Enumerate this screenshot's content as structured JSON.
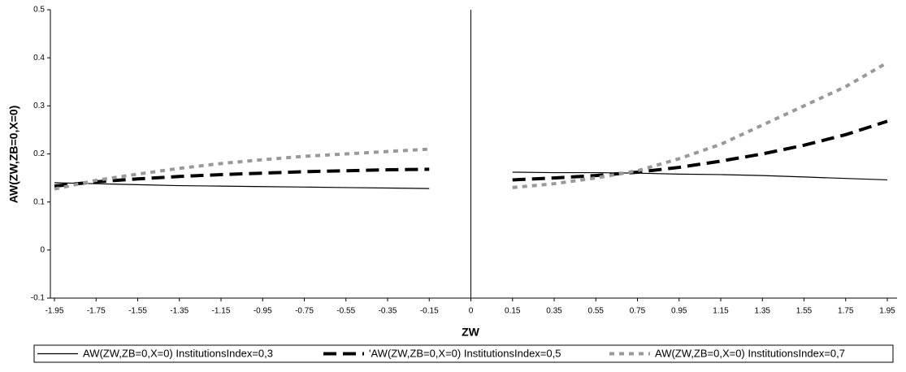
{
  "chart_data": {
    "type": "line",
    "x_label": "ZW",
    "y_label": "AW(ZW,ZB=0,X=0)",
    "categories": [
      "-1.95",
      "-1.75",
      "-1.55",
      "-1.35",
      "-1.15",
      "-0.95",
      "-0.75",
      "-0.55",
      "-0.35",
      "-0.15",
      "0",
      "0.15",
      "0.35",
      "0.55",
      "0.75",
      "0.95",
      "1.15",
      "1.35",
      "1.55",
      "1.75",
      "1.95"
    ],
    "series": [
      {
        "name": "AW(ZW,ZB=0,X=0) InstitutionsIndex=0,3",
        "color": "#000000",
        "width": 1.2,
        "dash": "none",
        "values": [
          0.14,
          0.138,
          0.136,
          0.134,
          0.133,
          0.132,
          0.131,
          0.13,
          0.129,
          0.128,
          null,
          0.162,
          0.161,
          0.161,
          0.16,
          0.158,
          0.157,
          0.155,
          0.152,
          0.149,
          0.146
        ]
      },
      {
        "name": "'AW(ZW,ZB=0,X=0) InstitutionsIndex=0,5",
        "color": "#000000",
        "width": 4,
        "dash": "16 8",
        "values": [
          0.133,
          0.142,
          0.148,
          0.153,
          0.157,
          0.16,
          0.163,
          0.165,
          0.167,
          0.168,
          null,
          0.146,
          0.15,
          0.155,
          0.162,
          0.172,
          0.185,
          0.2,
          0.218,
          0.24,
          0.268
        ]
      },
      {
        "name": "AW(ZW,ZB=0,X=0) InstitutionsIndex=0,7",
        "color": "#999999",
        "width": 4,
        "dash": "6 6",
        "values": [
          0.127,
          0.145,
          0.158,
          0.17,
          0.18,
          0.188,
          0.195,
          0.2,
          0.205,
          0.21,
          null,
          0.13,
          0.138,
          0.15,
          0.165,
          0.19,
          0.22,
          0.26,
          0.3,
          0.34,
          0.39
        ]
      }
    ],
    "ylim": [
      -0.1,
      0.5
    ],
    "yticks": [
      -0.1,
      0,
      0.1,
      0.2,
      0.3,
      0.4,
      0.5
    ],
    "legend": "bottom"
  }
}
